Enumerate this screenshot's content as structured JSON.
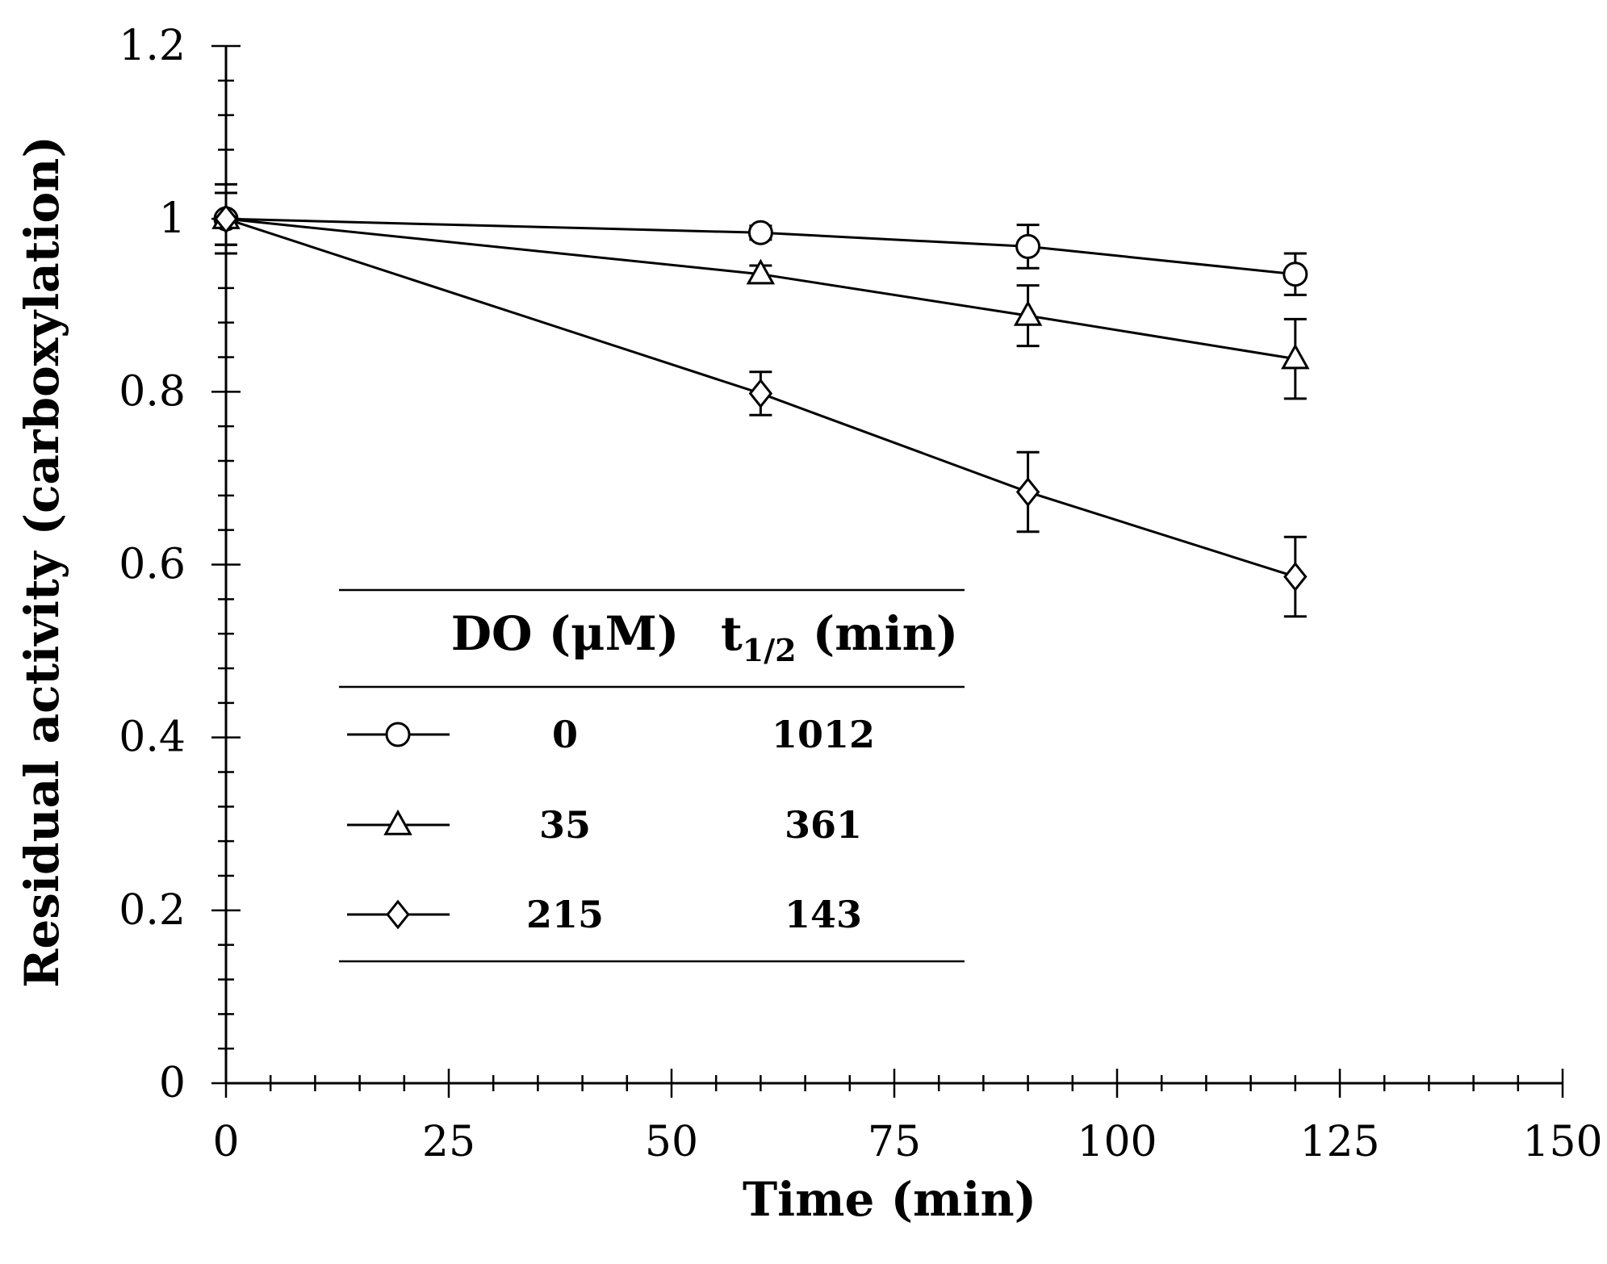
{
  "chart_data": {
    "type": "line",
    "title": "",
    "xlabel": "Time (min)",
    "ylabel": "Residual activity (carboxylation)",
    "xlim": [
      0,
      150
    ],
    "ylim": [
      0,
      1.2
    ],
    "x_ticks": [
      0,
      25,
      50,
      75,
      100,
      125,
      150
    ],
    "x_tick_labels": [
      "0",
      "25",
      "50",
      "75",
      "100",
      "125",
      "150"
    ],
    "y_ticks": [
      0,
      0.2,
      0.4,
      0.6,
      0.8,
      1,
      1.2
    ],
    "y_tick_labels": [
      "0",
      "0.2",
      "0.4",
      "0.6",
      "0.8",
      "1",
      "1.2"
    ],
    "x_minor_step": 5,
    "y_minor_step": 0.04,
    "grid": false,
    "legend_position": "center-left",
    "series": [
      {
        "name": "0",
        "marker": "circle",
        "t_half": "1012",
        "x": [
          0,
          60,
          90,
          120
        ],
        "y": [
          1.0,
          0.984,
          0.968,
          0.936
        ],
        "err": [
          0.03,
          0.008,
          0.025,
          0.024
        ]
      },
      {
        "name": "35",
        "marker": "triangle",
        "t_half": "361",
        "x": [
          0,
          60,
          90,
          120
        ],
        "y": [
          1.0,
          0.936,
          0.888,
          0.838
        ],
        "err": [
          0.03,
          0.01,
          0.035,
          0.046
        ]
      },
      {
        "name": "215",
        "marker": "diamond",
        "t_half": "143",
        "x": [
          0,
          60,
          90,
          120
        ],
        "y": [
          1.0,
          0.798,
          0.684,
          0.586
        ],
        "err": [
          0.04,
          0.025,
          0.046,
          0.046
        ]
      }
    ],
    "legend": {
      "col1_header": "DO (μM)",
      "col2_header_main": "t",
      "col2_header_sub": "1/2",
      "col2_header_rest": " (min)"
    }
  }
}
